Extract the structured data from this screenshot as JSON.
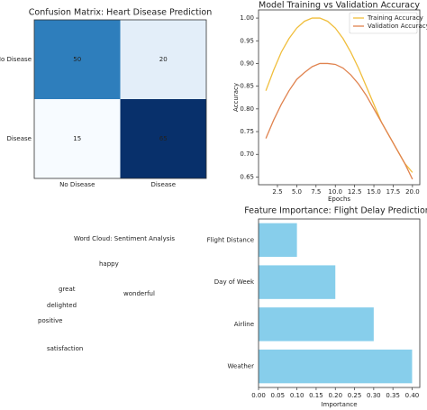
{
  "chart_data": [
    {
      "type": "heatmap",
      "title": "Confusion Matrix: Heart Disease Prediction",
      "x_categories": [
        "No Disease",
        "Disease"
      ],
      "y_categories": [
        "No Disease",
        "Disease"
      ],
      "values": [
        [
          50,
          20
        ],
        [
          15,
          65
        ]
      ],
      "colormap": "Blues"
    },
    {
      "type": "line",
      "title": "Model Training vs Validation Accuracy",
      "xlabel": "Epochs",
      "ylabel": "Accuracy",
      "x": [
        1,
        2,
        3,
        4,
        5,
        6,
        7,
        8,
        9,
        10,
        11,
        12,
        13,
        14,
        15,
        16,
        17,
        18,
        19,
        20
      ],
      "series": [
        {
          "name": "Training Accuracy",
          "color": "#f0be3c",
          "values": [
            0.84,
            0.885,
            0.925,
            0.955,
            0.978,
            0.993,
            1.0,
            1.0,
            0.993,
            0.978,
            0.955,
            0.925,
            0.89,
            0.85,
            0.81,
            0.77,
            0.74,
            0.71,
            0.68,
            0.66
          ]
        },
        {
          "name": "Validation Accuracy",
          "color": "#e0834f",
          "values": [
            0.735,
            0.775,
            0.81,
            0.84,
            0.865,
            0.88,
            0.893,
            0.9,
            0.9,
            0.898,
            0.89,
            0.875,
            0.855,
            0.83,
            0.8,
            0.77,
            0.74,
            0.71,
            0.68,
            0.645
          ]
        }
      ],
      "xlim": [
        0.05,
        20.95
      ],
      "xticks": [
        2.5,
        {
          "value": 5,
          "label": "5.0"
        },
        7.5,
        {
          "value": 10,
          "label": "10.0"
        },
        12.5,
        {
          "value": 15,
          "label": "15.0"
        },
        17.5,
        {
          "value": 20,
          "label": "20.0"
        }
      ],
      "ylim": [
        0.633,
        1.018
      ],
      "yticks": [
        0.65,
        {
          "value": 0.7,
          "label": "0.70"
        },
        0.75,
        {
          "value": 0.8,
          "label": "0.80"
        },
        0.85,
        {
          "value": 0.9,
          "label": "0.90"
        },
        0.95,
        {
          "value": 1,
          "label": "1.00"
        }
      ],
      "legend": "upper right"
    },
    {
      "type": "wordcloud",
      "title": "Word Cloud: Sentiment Analysis",
      "words": [
        {
          "text": "happy",
          "color": "#2a9d77"
        },
        {
          "text": "great",
          "color": "#3b4a86"
        },
        {
          "text": "wonderful",
          "color": "#3d4b88"
        },
        {
          "text": "delighted",
          "color": "#2f7f8e"
        },
        {
          "text": "positive",
          "color": "#2b7b8e"
        },
        {
          "text": "satisfaction",
          "color": "#20918c"
        }
      ]
    },
    {
      "type": "barh",
      "title": "Feature Importance: Flight Delay Prediction",
      "xlabel": "Importance",
      "categories": [
        "Weather",
        "Airline",
        "Day of Week",
        "Flight Distance"
      ],
      "values": [
        0.4,
        0.3,
        0.2,
        0.1
      ],
      "color": "#87ceeb",
      "xlim": [
        0,
        0.42
      ],
      "xticks": [
        {
          "value": 0,
          "label": "0.00"
        },
        0.05,
        {
          "value": 0.1,
          "label": "0.10"
        },
        0.15,
        {
          "value": 0.2,
          "label": "0.20"
        },
        0.25,
        {
          "value": 0.3,
          "label": "0.30"
        },
        0.35,
        {
          "value": 0.4,
          "label": "0.40"
        }
      ]
    }
  ]
}
